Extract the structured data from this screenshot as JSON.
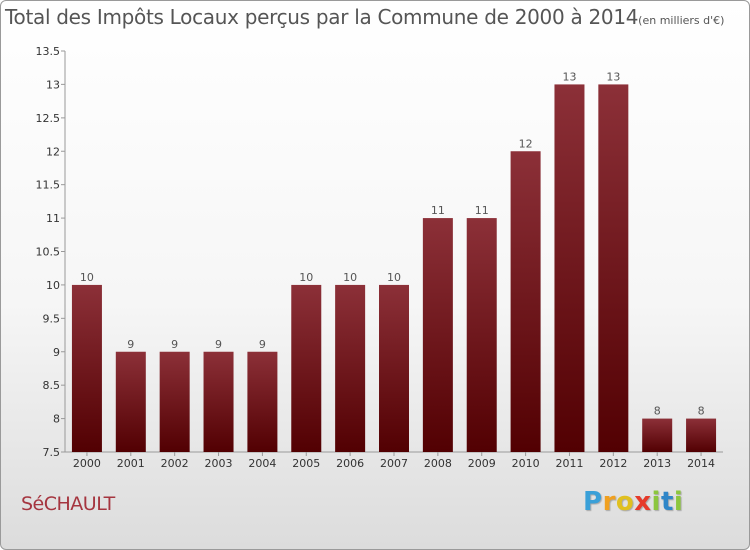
{
  "title": "Total des Impôts Locaux perçus par la Commune de 2000 à 2014",
  "subtitle": "(en milliers d'€)",
  "commune": "SéCHAULT",
  "logo": {
    "letters": [
      "P",
      "r",
      "o",
      "x",
      "i",
      "t",
      "i"
    ],
    "colors": [
      "#3aa0d8",
      "#f0a020",
      "#e0c020",
      "#e63a2a",
      "#8cc63e",
      "#2f86c8",
      "#8cc63e"
    ]
  },
  "colors": {
    "bar_top": "#8c3038",
    "bar_bottom": "#520002",
    "axis": "#999999"
  },
  "chart_data": {
    "type": "bar",
    "categories": [
      "2000",
      "2001",
      "2002",
      "2003",
      "2004",
      "2005",
      "2006",
      "2007",
      "2008",
      "2009",
      "2010",
      "2011",
      "2012",
      "2013",
      "2014"
    ],
    "values": [
      10,
      9,
      9,
      9,
      9,
      10,
      10,
      10,
      11,
      11,
      12,
      13,
      13,
      8,
      8
    ],
    "ylim": [
      7.5,
      13.5
    ],
    "yticks": [
      "7.5",
      "8",
      "8.5",
      "9",
      "9.5",
      "10",
      "10.5",
      "11",
      "11.5",
      "12",
      "12.5",
      "13",
      "13.5"
    ],
    "xlabel": "",
    "ylabel": "",
    "grid": false
  }
}
